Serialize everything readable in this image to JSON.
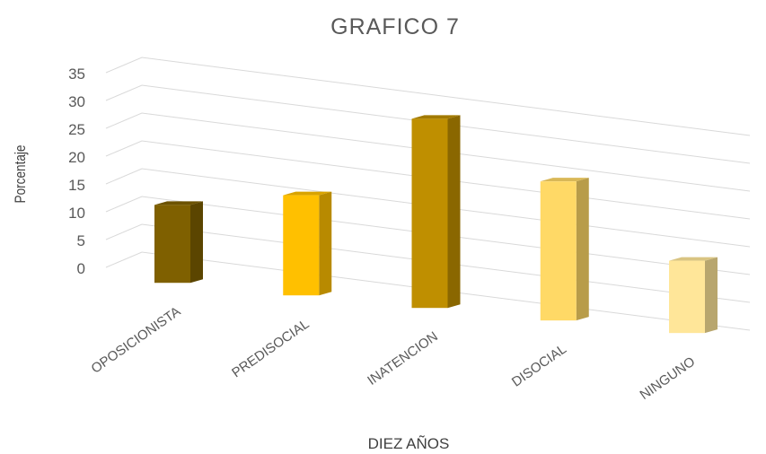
{
  "chart_data": {
    "type": "bar",
    "title": "GRAFICO 7",
    "xlabel": "DIEZ AÑOS",
    "ylabel": "Porcentaje",
    "ylim": [
      0,
      35
    ],
    "yticks": [
      "0",
      "5",
      "10",
      "15",
      "20",
      "25",
      "30",
      "35"
    ],
    "categories": [
      "OPOSICIONISTA",
      "PREDISOCIAL",
      "INATENCION",
      "DISOCIAL",
      "NINGUNO"
    ],
    "values": [
      14,
      18,
      34,
      25,
      13
    ],
    "colors": [
      "#7f6000",
      "#ffc000",
      "#bf8f00",
      "#ffd966",
      "#ffe699"
    ],
    "grid": true,
    "style": "3d-column"
  }
}
